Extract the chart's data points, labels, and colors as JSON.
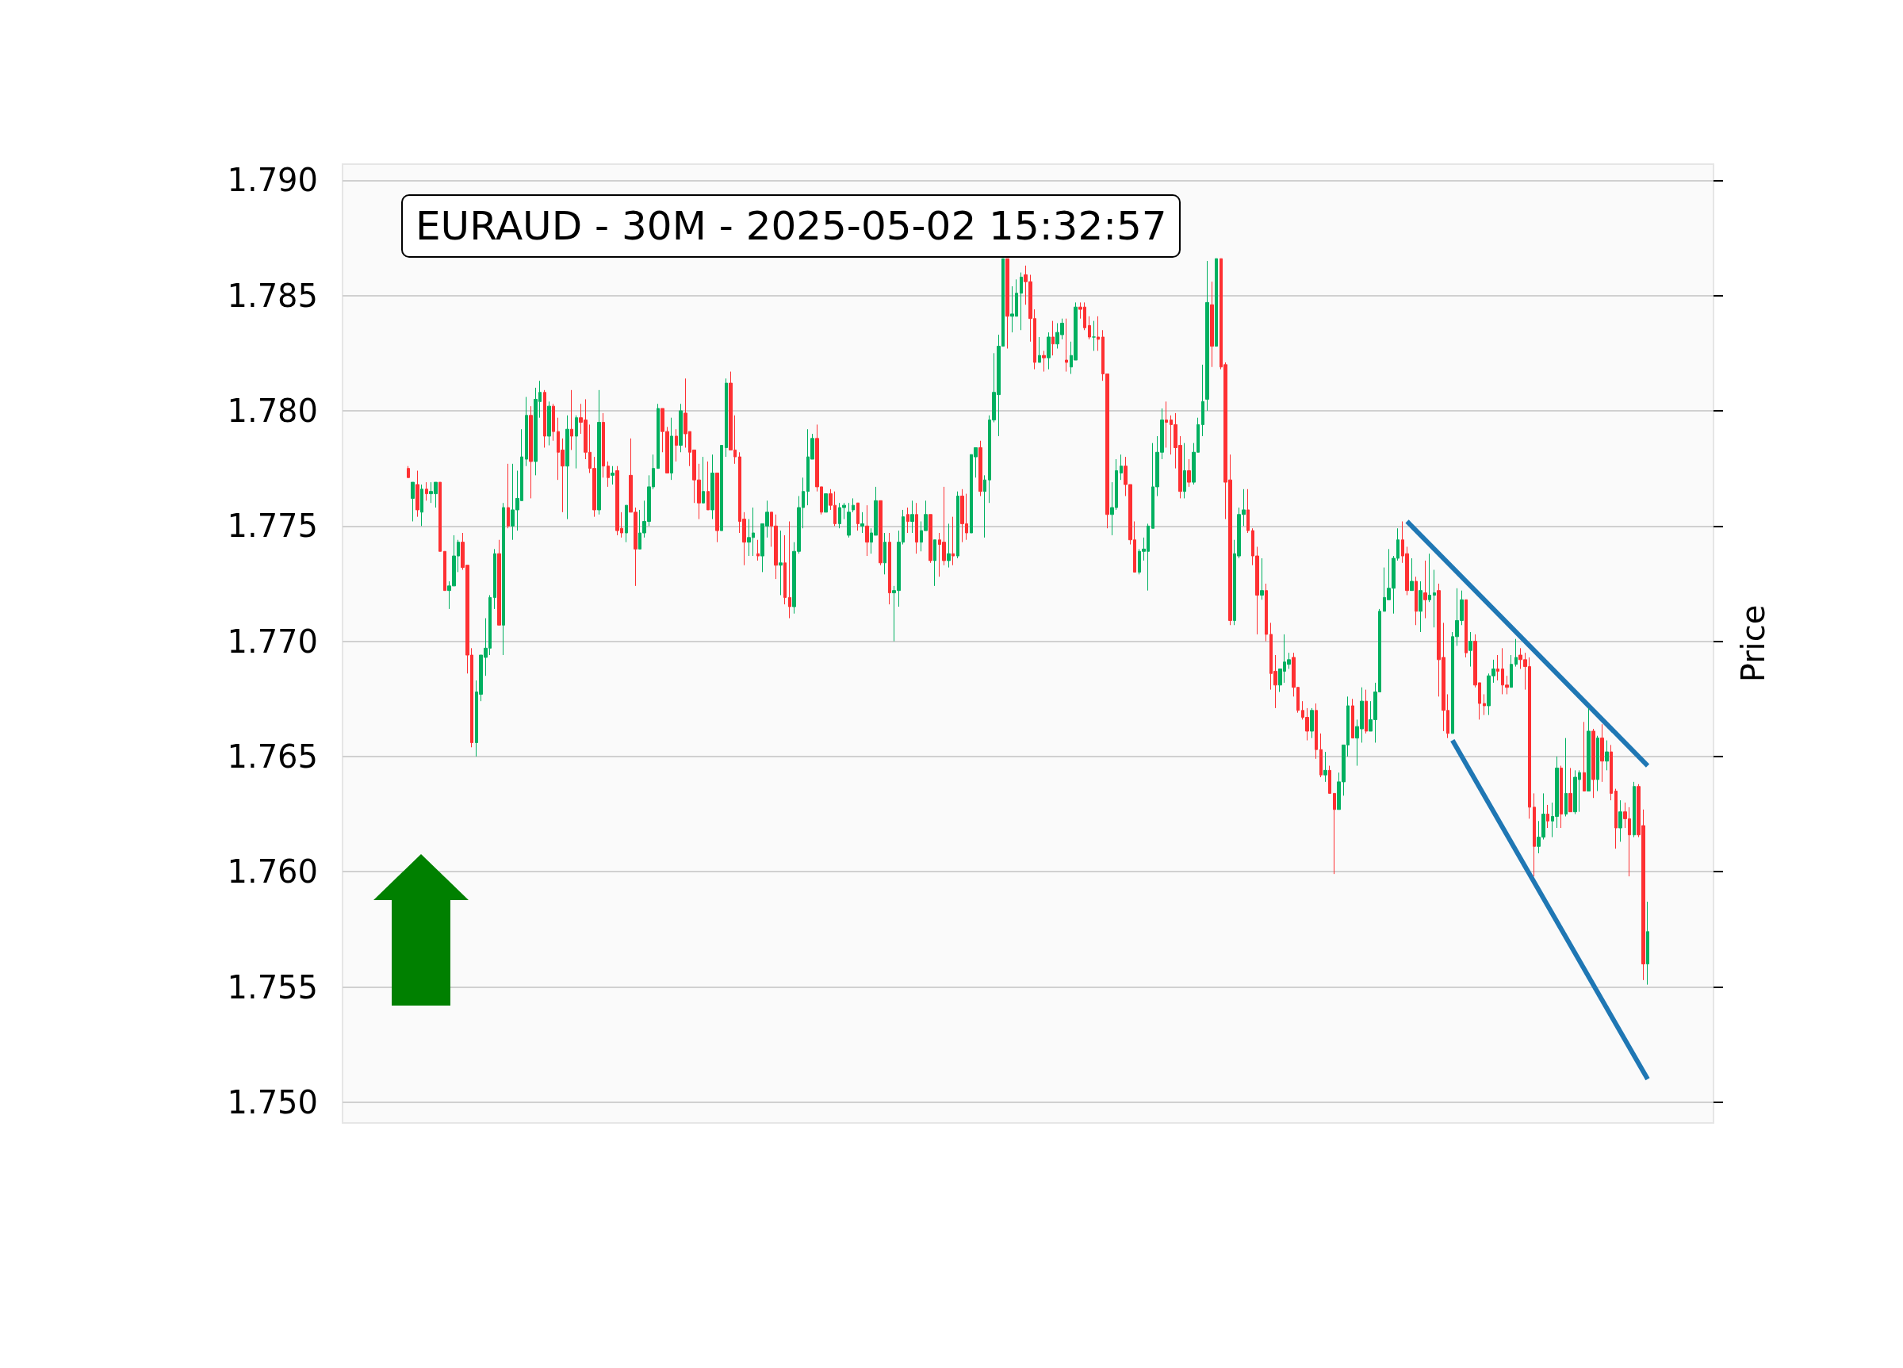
{
  "chart_data": {
    "type": "candlestick",
    "title": "EURAUD - 30M - 2025-05-02 15:32:57",
    "ylabel": "Price",
    "categories": [
      null,
      null,
      null,
      null,
      null,
      null,
      null,
      null,
      null,
      null,
      null,
      null,
      null,
      null,
      null,
      null,
      null,
      null,
      null,
      null,
      null,
      null,
      null,
      null,
      null,
      null,
      null,
      null,
      null,
      null,
      null,
      null,
      null,
      null,
      null,
      null,
      null,
      null,
      null,
      null,
      null,
      null,
      null,
      null,
      null,
      null,
      null,
      null,
      null,
      null,
      null,
      null,
      null,
      null,
      null,
      null,
      null,
      null,
      null,
      null,
      null,
      null,
      null,
      null,
      null,
      null,
      null,
      null,
      null,
      null,
      null,
      null,
      null,
      null,
      null,
      null,
      null,
      null,
      null,
      null,
      null,
      null,
      null,
      null,
      null,
      null,
      null,
      null,
      null,
      null,
      null,
      null,
      null,
      null,
      null,
      null,
      null,
      null,
      null,
      null,
      null,
      null,
      null,
      null,
      null,
      null,
      null,
      null,
      null,
      null,
      null,
      null,
      null,
      null,
      null,
      null,
      null,
      null,
      null,
      null,
      null,
      null,
      null,
      null,
      null,
      null,
      null,
      null,
      null,
      null,
      null,
      null,
      null,
      null,
      null,
      null,
      null,
      null,
      null,
      null,
      null,
      null,
      null,
      null,
      null,
      null,
      null,
      null,
      null,
      null,
      null,
      null,
      null,
      null,
      null,
      null,
      null,
      null,
      null,
      null,
      null,
      null,
      null,
      null,
      null,
      null,
      null,
      null,
      null,
      null,
      null,
      null,
      null,
      null,
      null,
      null,
      null,
      null,
      null,
      null,
      null,
      null,
      null,
      null,
      null,
      null,
      null,
      null,
      null,
      null,
      null,
      null,
      null,
      null,
      null,
      null,
      null,
      null,
      null,
      null,
      null,
      null,
      null,
      null,
      null,
      null,
      null,
      null,
      null,
      null,
      null,
      null,
      null,
      null,
      null,
      null,
      null,
      null,
      null,
      null,
      null,
      null,
      null,
      null,
      null,
      null,
      null,
      null,
      null,
      null,
      null,
      null,
      null,
      null,
      null,
      null,
      null,
      null,
      null,
      null,
      null,
      null,
      null,
      null,
      null,
      null,
      null,
      null,
      null,
      null,
      null,
      null,
      null,
      null,
      null,
      null,
      null,
      null,
      null,
      null,
      null,
      null,
      null,
      null,
      null,
      null,
      null,
      null,
      null,
      null,
      null,
      null,
      null,
      null,
      null,
      null,
      null,
      null,
      null,
      null,
      null,
      null,
      null,
      null,
      null,
      null,
      null,
      null,
      null,
      null,
      null,
      null,
      null,
      null,
      null,
      null,
      null,
      null,
      null,
      null,
      null,
      null
    ],
    "ohlc": [
      null,
      null,
      null,
      null,
      null,
      null,
      null,
      null,
      null,
      null,
      null,
      null,
      null,
      null,
      [
        1.7775,
        1.7776,
        1.7771,
        1.7771
      ],
      [
        1.7762,
        1.7769,
        1.7752,
        1.7769
      ],
      [
        1.7768,
        1.7774,
        1.7754,
        1.7757
      ],
      [
        1.7756,
        1.7768,
        1.775,
        1.7766
      ],
      [
        1.7766,
        1.7769,
        1.7761,
        1.7764
      ],
      [
        1.7764,
        1.7769,
        1.776,
        1.7765
      ],
      [
        1.7764,
        1.7769,
        1.7758,
        1.7769
      ],
      [
        1.7769,
        1.7769,
        1.7739,
        1.7739
      ],
      [
        1.7739,
        1.7739,
        1.7722,
        1.7722
      ],
      [
        1.7722,
        1.7726,
        1.7714,
        1.7724
      ],
      [
        1.7724,
        1.7746,
        1.7724,
        1.7737
      ],
      [
        1.7737,
        1.7744,
        1.773,
        1.7743
      ],
      [
        1.7743,
        1.7747,
        1.7731,
        1.7732
      ],
      [
        1.7733,
        1.7733,
        1.7686,
        1.7694
      ],
      [
        1.7694,
        1.7697,
        1.7654,
        1.7656
      ],
      [
        1.7656,
        1.7683,
        1.765,
        1.7678
      ],
      [
        1.7677,
        1.7694,
        1.7674,
        1.7694
      ],
      [
        1.7693,
        1.771,
        1.7685,
        1.7697
      ],
      [
        1.7697,
        1.772,
        1.7694,
        1.7719
      ],
      [
        1.7719,
        1.774,
        1.7714,
        1.7738
      ],
      [
        1.7738,
        1.7744,
        1.7707,
        1.7707
      ],
      [
        1.7707,
        1.776,
        1.7694,
        1.7758
      ],
      [
        1.7758,
        1.7777,
        1.7749,
        1.775
      ],
      [
        1.775,
        1.7777,
        1.7744,
        1.7757
      ],
      [
        1.7757,
        1.7774,
        1.7748,
        1.7762
      ],
      [
        1.7761,
        1.7792,
        1.7761,
        1.778
      ],
      [
        1.7779,
        1.7806,
        1.7776,
        1.7798
      ],
      [
        1.7798,
        1.7802,
        1.7762,
        1.7778
      ],
      [
        1.7778,
        1.781,
        1.7772,
        1.7805
      ],
      [
        1.7804,
        1.7813,
        1.7797,
        1.7808
      ],
      [
        1.7808,
        1.7809,
        1.7784,
        1.7789
      ],
      [
        1.7789,
        1.7804,
        1.7785,
        1.7802
      ],
      [
        1.7802,
        1.7803,
        1.7787,
        1.7791
      ],
      [
        1.7791,
        1.7797,
        1.777,
        1.7782
      ],
      [
        1.7783,
        1.7788,
        1.7756,
        1.7776
      ],
      [
        1.7776,
        1.7798,
        1.7753,
        1.7792
      ],
      [
        1.7792,
        1.7809,
        1.7783,
        1.7789
      ],
      [
        1.7789,
        1.7798,
        1.7775,
        1.7797
      ],
      [
        1.7797,
        1.7803,
        1.779,
        1.7795
      ],
      [
        1.7796,
        1.7805,
        1.7779,
        1.7782
      ],
      [
        1.7782,
        1.7794,
        1.7773,
        1.7775
      ],
      [
        1.7775,
        1.778,
        1.7754,
        1.7757
      ],
      [
        1.7757,
        1.7809,
        1.7755,
        1.7795
      ],
      [
        1.7795,
        1.7799,
        1.7771,
        1.7776
      ],
      [
        1.7776,
        1.7778,
        1.7767,
        1.7771
      ],
      [
        1.7772,
        1.7776,
        1.7768,
        1.7773
      ],
      [
        1.7774,
        1.7776,
        1.7746,
        1.7748
      ],
      [
        1.7749,
        1.7756,
        1.7745,
        1.7747
      ],
      [
        1.7747,
        1.7759,
        1.7743,
        1.7759
      ],
      [
        1.7772,
        1.7788,
        1.7756,
        1.7756
      ],
      [
        1.7756,
        1.7758,
        1.7724,
        1.774
      ],
      [
        1.774,
        1.7757,
        1.774,
        1.7747
      ],
      [
        1.7747,
        1.7761,
        1.7745,
        1.7752
      ],
      [
        1.7752,
        1.7772,
        1.775,
        1.7767
      ],
      [
        1.7767,
        1.7781,
        1.7766,
        1.7775
      ],
      [
        1.7775,
        1.7803,
        1.7775,
        1.7801
      ],
      [
        1.7801,
        1.7801,
        1.7782,
        1.7791
      ],
      [
        1.7791,
        1.7793,
        1.7773,
        1.7773
      ],
      [
        1.7773,
        1.7797,
        1.777,
        1.7789
      ],
      [
        1.7789,
        1.7792,
        1.7778,
        1.7785
      ],
      [
        1.7785,
        1.7803,
        1.7782,
        1.78
      ],
      [
        1.7799,
        1.7814,
        1.7784,
        1.779
      ],
      [
        1.7791,
        1.7791,
        1.7776,
        1.7782
      ],
      [
        1.7783,
        1.7783,
        1.776,
        1.777
      ],
      [
        1.777,
        1.7777,
        1.7753,
        1.776
      ],
      [
        1.776,
        1.778,
        1.776,
        1.7765
      ],
      [
        1.7765,
        1.7778,
        1.7757,
        1.7757
      ],
      [
        1.7757,
        1.7781,
        1.7753,
        1.7773
      ],
      [
        1.7773,
        1.7773,
        1.7743,
        1.7748
      ],
      [
        1.7748,
        1.7785,
        1.7748,
        1.7785
      ],
      [
        1.7784,
        1.7814,
        1.778,
        1.7812
      ],
      [
        1.7812,
        1.7817,
        1.7783,
        1.7783
      ],
      [
        1.7783,
        1.7798,
        1.7777,
        1.778
      ],
      [
        1.778,
        1.7782,
        1.7747,
        1.7752
      ],
      [
        1.7753,
        1.7756,
        1.7733,
        1.7743
      ],
      [
        1.7743,
        1.7753,
        1.7737,
        1.7745
      ],
      [
        1.7745,
        1.7758,
        1.7737,
        1.7747
      ],
      [
        1.7738,
        1.7744,
        1.7735,
        1.7737
      ],
      [
        1.7737,
        1.7751,
        1.773,
        1.7751
      ],
      [
        1.775,
        1.7761,
        1.7745,
        1.7756
      ],
      [
        1.7756,
        1.7756,
        1.7741,
        1.775
      ],
      [
        1.775,
        1.7755,
        1.7727,
        1.7733
      ],
      [
        1.7733,
        1.7748,
        1.772,
        1.7734
      ],
      [
        1.7734,
        1.7746,
        1.7716,
        1.7719
      ],
      [
        1.7719,
        1.7752,
        1.771,
        1.7715
      ],
      [
        1.7715,
        1.7743,
        1.7712,
        1.7739
      ],
      [
        1.7739,
        1.7763,
        1.7738,
        1.7758
      ],
      [
        1.7758,
        1.7771,
        1.7749,
        1.7765
      ],
      [
        1.7765,
        1.7792,
        1.7759,
        1.778
      ],
      [
        1.7779,
        1.779,
        1.7779,
        1.7788
      ],
      [
        1.7788,
        1.7794,
        1.7765,
        1.7767
      ],
      [
        1.7767,
        1.7767,
        1.7755,
        1.7756
      ],
      [
        1.7756,
        1.7764,
        1.7756,
        1.7764
      ],
      [
        1.7764,
        1.7766,
        1.7757,
        1.7759
      ],
      [
        1.7759,
        1.7765,
        1.775,
        1.7751
      ],
      [
        1.7751,
        1.776,
        1.7749,
        1.7758
      ],
      [
        1.7758,
        1.776,
        1.7753,
        1.7759
      ],
      [
        1.7746,
        1.776,
        1.7745,
        1.7756
      ],
      [
        1.7757,
        1.7762,
        1.7756,
        1.7759
      ],
      [
        1.776,
        1.776,
        1.7748,
        1.7751
      ],
      [
        1.775,
        1.7756,
        1.7747,
        1.7751
      ],
      [
        1.775,
        1.7759,
        1.7737,
        1.7743
      ],
      [
        1.7743,
        1.7749,
        1.7738,
        1.7747
      ],
      [
        1.7746,
        1.7767,
        1.7746,
        1.7761
      ],
      [
        1.7761,
        1.7761,
        1.7733,
        1.7734
      ],
      [
        1.7734,
        1.7747,
        1.7729,
        1.7743
      ],
      [
        1.7743,
        1.7747,
        1.7716,
        1.7721
      ],
      [
        1.7721,
        1.7724,
        1.77,
        1.7722
      ],
      [
        1.7722,
        1.7748,
        1.7715,
        1.7743
      ],
      [
        1.7743,
        1.7757,
        1.7742,
        1.7754
      ],
      [
        1.7755,
        1.7758,
        1.7747,
        1.7752
      ],
      [
        1.7752,
        1.7761,
        1.7747,
        1.7755
      ],
      [
        1.7755,
        1.776,
        1.7738,
        1.7743
      ],
      [
        1.7743,
        1.7752,
        1.7739,
        1.7748
      ],
      [
        1.7748,
        1.7761,
        1.7748,
        1.7755
      ],
      [
        1.7755,
        1.7755,
        1.7734,
        1.7735
      ],
      [
        1.7735,
        1.7744,
        1.7724,
        1.7744
      ],
      [
        1.7744,
        1.7747,
        1.7728,
        1.7742
      ],
      [
        1.7743,
        1.7767,
        1.7733,
        1.7735
      ],
      [
        1.7735,
        1.7751,
        1.7732,
        1.7738
      ],
      [
        1.7738,
        1.7754,
        1.7733,
        1.7737
      ],
      [
        1.7737,
        1.7765,
        1.7736,
        1.7763
      ],
      [
        1.7763,
        1.7766,
        1.7743,
        1.7751
      ],
      [
        1.7751,
        1.7764,
        1.7744,
        1.7747
      ],
      [
        1.7747,
        1.7781,
        1.7747,
        1.7781
      ],
      [
        1.778,
        1.7784,
        1.7771,
        1.7784
      ],
      [
        1.7784,
        1.7787,
        1.7763,
        1.7765
      ],
      [
        1.7765,
        1.7772,
        1.7745,
        1.777
      ],
      [
        1.777,
        1.7798,
        1.776,
        1.7796
      ],
      [
        1.7796,
        1.7825,
        1.7795,
        1.7808
      ],
      [
        1.7807,
        1.7833,
        1.7789,
        1.7828
      ],
      [
        1.7828,
        1.7866,
        1.7828,
        1.7866
      ],
      [
        1.7866,
        1.7866,
        1.7827,
        1.7841
      ],
      [
        1.7841,
        1.7854,
        1.7834,
        1.7842
      ],
      [
        1.7841,
        1.7857,
        1.7841,
        1.7851
      ],
      [
        1.7851,
        1.786,
        1.7835,
        1.7858
      ],
      [
        1.7859,
        1.7863,
        1.7846,
        1.7856
      ],
      [
        1.7856,
        1.7859,
        1.783,
        1.784
      ],
      [
        1.784,
        1.7844,
        1.7818,
        1.7821
      ],
      [
        1.7821,
        1.7832,
        1.7821,
        1.7824
      ],
      [
        1.7824,
        1.7826,
        1.7817,
        1.7823
      ],
      [
        1.7823,
        1.7834,
        1.7818,
        1.7832
      ],
      [
        1.7832,
        1.7839,
        1.7824,
        1.7829
      ],
      [
        1.7829,
        1.7838,
        1.7827,
        1.7834
      ],
      [
        1.7833,
        1.784,
        1.7831,
        1.7838
      ],
      [
        1.7822,
        1.784,
        1.7817,
        1.7821
      ],
      [
        1.7819,
        1.783,
        1.7816,
        1.7824
      ],
      [
        1.7822,
        1.7847,
        1.7822,
        1.7845
      ],
      [
        1.7845,
        1.7847,
        1.784,
        1.7844
      ],
      [
        1.7845,
        1.7847,
        1.7835,
        1.7836
      ],
      [
        1.7837,
        1.7841,
        1.7831,
        1.7832
      ],
      [
        1.7832,
        1.7839,
        1.7826,
        1.7832
      ],
      [
        1.7832,
        1.7841,
        1.7826,
        1.7831
      ],
      [
        1.7832,
        1.7835,
        1.7813,
        1.7816
      ],
      [
        1.7816,
        1.7816,
        1.7749,
        1.7755
      ],
      [
        1.7755,
        1.7769,
        1.7746,
        1.7758
      ],
      [
        1.7758,
        1.7779,
        1.7757,
        1.7774
      ],
      [
        1.7773,
        1.7781,
        1.777,
        1.7776
      ],
      [
        1.7776,
        1.778,
        1.7763,
        1.7768
      ],
      [
        1.7768,
        1.7768,
        1.7742,
        1.7744
      ],
      [
        1.7744,
        1.7752,
        1.773,
        1.773
      ],
      [
        1.773,
        1.774,
        1.7729,
        1.7739
      ],
      [
        1.7739,
        1.7745,
        1.7735,
        1.774
      ],
      [
        1.7739,
        1.7751,
        1.7722,
        1.775
      ],
      [
        1.7749,
        1.7786,
        1.7749,
        1.7767
      ],
      [
        1.7767,
        1.7789,
        1.7763,
        1.7782
      ],
      [
        1.7782,
        1.7801,
        1.7779,
        1.7796
      ],
      [
        1.7796,
        1.7804,
        1.7784,
        1.7795
      ],
      [
        1.7796,
        1.7798,
        1.7781,
        1.7794
      ],
      [
        1.7794,
        1.7799,
        1.7775,
        1.7784
      ],
      [
        1.7785,
        1.7789,
        1.7762,
        1.7765
      ],
      [
        1.7765,
        1.7786,
        1.7762,
        1.7774
      ],
      [
        1.7774,
        1.7779,
        1.7767,
        1.7769
      ],
      [
        1.7769,
        1.7786,
        1.7768,
        1.7782
      ],
      [
        1.7782,
        1.7797,
        1.7782,
        1.7794
      ],
      [
        1.7794,
        1.782,
        1.7789,
        1.7804
      ],
      [
        1.7805,
        1.7865,
        1.78,
        1.7847
      ],
      [
        1.7846,
        1.7856,
        1.7819,
        1.7828
      ],
      [
        1.7828,
        1.7866,
        1.7828,
        1.7866
      ],
      [
        1.7866,
        1.7866,
        1.7818,
        1.7819
      ],
      [
        1.782,
        1.7821,
        1.7753,
        1.7769
      ],
      [
        1.777,
        1.7781,
        1.7707,
        1.7709
      ],
      [
        1.7709,
        1.7744,
        1.7707,
        1.7738
      ],
      [
        1.7737,
        1.7758,
        1.7736,
        1.7755
      ],
      [
        1.7755,
        1.7766,
        1.775,
        1.7757
      ],
      [
        1.7757,
        1.7766,
        1.7747,
        1.7748
      ],
      [
        1.7748,
        1.7749,
        1.7733,
        1.7737
      ],
      [
        1.7737,
        1.7741,
        1.7703,
        1.772
      ],
      [
        1.772,
        1.7736,
        1.7718,
        1.7722
      ],
      [
        1.7722,
        1.7725,
        1.77,
        1.7703
      ],
      [
        1.7703,
        1.7708,
        1.7679,
        1.7686
      ],
      [
        1.7687,
        1.7694,
        1.7671,
        1.7681
      ],
      [
        1.7681,
        1.7688,
        1.7678,
        1.7688
      ],
      [
        1.7687,
        1.7703,
        1.7682,
        1.7691
      ],
      [
        1.769,
        1.7695,
        1.7688,
        1.7692
      ],
      [
        1.7693,
        1.7695,
        1.7676,
        1.768
      ],
      [
        1.768,
        1.768,
        1.7669,
        1.767
      ],
      [
        1.767,
        1.7674,
        1.7666,
        1.7667
      ],
      [
        1.7667,
        1.7671,
        1.7657,
        1.7661
      ],
      [
        1.7661,
        1.7671,
        1.7658,
        1.767
      ],
      [
        1.767,
        1.7673,
        1.7649,
        1.7653
      ],
      [
        1.7653,
        1.766,
        1.7641,
        1.7642
      ],
      [
        1.7642,
        1.7652,
        1.7639,
        1.7644
      ],
      [
        1.7644,
        1.7646,
        1.7634,
        1.7634
      ],
      [
        1.7634,
        1.7634,
        1.7599,
        1.7627
      ],
      [
        1.7627,
        1.7643,
        1.7627,
        1.7639
      ],
      [
        1.7639,
        1.7655,
        1.7633,
        1.7655
      ],
      [
        1.7655,
        1.7676,
        1.765,
        1.7672
      ],
      [
        1.7672,
        1.7675,
        1.7658,
        1.7658
      ],
      [
        1.7658,
        1.7666,
        1.7646,
        1.7663
      ],
      [
        1.7662,
        1.768,
        1.7656,
        1.7674
      ],
      [
        1.7674,
        1.7679,
        1.766,
        1.7661
      ],
      [
        1.7661,
        1.7674,
        1.7661,
        1.7666
      ],
      [
        1.7666,
        1.7682,
        1.7656,
        1.7678
      ],
      [
        1.7678,
        1.7714,
        1.7678,
        1.7713
      ],
      [
        1.7713,
        1.7732,
        1.7713,
        1.7719
      ],
      [
        1.7718,
        1.774,
        1.7718,
        1.7723
      ],
      [
        1.7723,
        1.7737,
        1.7712,
        1.7736
      ],
      [
        1.7736,
        1.7749,
        1.7735,
        1.7744
      ],
      [
        1.7744,
        1.7752,
        1.7734,
        1.7737
      ],
      [
        1.7738,
        1.7741,
        1.772,
        1.7722
      ],
      [
        1.7722,
        1.7736,
        1.7722,
        1.7726
      ],
      [
        1.7726,
        1.7728,
        1.7707,
        1.7713
      ],
      [
        1.7713,
        1.7726,
        1.7704,
        1.7722
      ],
      [
        1.7721,
        1.7735,
        1.771,
        1.7718
      ],
      [
        1.7718,
        1.7738,
        1.7717,
        1.772
      ],
      [
        1.772,
        1.7731,
        1.7706,
        1.7721
      ],
      [
        1.7722,
        1.7725,
        1.7676,
        1.7692
      ],
      [
        1.7693,
        1.7708,
        1.7661,
        1.767
      ],
      [
        1.767,
        1.7677,
        1.7658,
        1.766
      ],
      [
        1.766,
        1.7704,
        1.766,
        1.7702
      ],
      [
        1.7702,
        1.7723,
        1.7698,
        1.7709
      ],
      [
        1.7709,
        1.7722,
        1.7707,
        1.7718
      ],
      [
        1.7718,
        1.7718,
        1.7693,
        1.7695
      ],
      [
        1.7696,
        1.7704,
        1.7689,
        1.77
      ],
      [
        1.77,
        1.7703,
        1.768,
        1.7681
      ],
      [
        1.7682,
        1.7682,
        1.7666,
        1.7673
      ],
      [
        1.7673,
        1.7677,
        1.7668,
        1.7672
      ],
      [
        1.7672,
        1.7686,
        1.7668,
        1.7685
      ],
      [
        1.7685,
        1.7692,
        1.7682,
        1.7688
      ],
      [
        1.7688,
        1.7694,
        1.7683,
        1.7687
      ],
      [
        1.7688,
        1.7697,
        1.7677,
        1.7681
      ],
      [
        1.7681,
        1.7685,
        1.7677,
        1.768
      ],
      [
        1.768,
        1.7694,
        1.768,
        1.769
      ],
      [
        1.769,
        1.7701,
        1.7689,
        1.7693
      ],
      [
        1.7694,
        1.7697,
        1.7688,
        1.7692
      ],
      [
        1.7692,
        1.7695,
        1.7679,
        1.7689
      ],
      [
        1.7689,
        1.7693,
        1.7623,
        1.7628
      ],
      [
        1.7628,
        1.7634,
        1.7598,
        1.7611
      ],
      [
        1.7611,
        1.7622,
        1.7608,
        1.7615
      ],
      [
        1.7615,
        1.7634,
        1.7614,
        1.7625
      ],
      [
        1.7625,
        1.7629,
        1.7619,
        1.7622
      ],
      [
        1.7622,
        1.763,
        1.7615,
        1.7624
      ],
      [
        1.7624,
        1.765,
        1.7619,
        1.7645
      ],
      [
        1.7645,
        1.7646,
        1.7619,
        1.7625
      ],
      [
        1.7625,
        1.7658,
        1.7624,
        1.7634
      ],
      [
        1.7634,
        1.7645,
        1.7626,
        1.7626
      ],
      [
        1.7626,
        1.7644,
        1.7625,
        1.7641
      ],
      [
        1.764,
        1.7644,
        1.7626,
        1.7643
      ],
      [
        1.7643,
        1.7665,
        1.7635,
        1.7635
      ],
      [
        1.7635,
        1.7671,
        1.7635,
        1.7661
      ],
      [
        1.7661,
        1.7662,
        1.7632,
        1.764
      ],
      [
        1.764,
        1.7659,
        1.7635,
        1.7658
      ],
      [
        1.7658,
        1.7664,
        1.7639,
        1.7648
      ],
      [
        1.7648,
        1.7657,
        1.7644,
        1.7652
      ],
      [
        1.7652,
        1.7655,
        1.7631,
        1.7634
      ],
      [
        1.7635,
        1.7636,
        1.761,
        1.7619
      ],
      [
        1.7619,
        1.7631,
        1.7613,
        1.7626
      ],
      [
        1.7626,
        1.763,
        1.7619,
        1.7623
      ],
      [
        1.7623,
        1.7628,
        1.7598,
        1.7616
      ],
      [
        1.7616,
        1.7639,
        1.7615,
        1.7637
      ],
      [
        1.7637,
        1.7638,
        1.7615,
        1.7616
      ],
      [
        1.762,
        1.7627,
        1.7553,
        1.756
      ],
      [
        1.756,
        1.7587,
        1.7551,
        1.7574
      ],
      null,
      null,
      null,
      null,
      null,
      null,
      null,
      null,
      null,
      null,
      null,
      null,
      null,
      null
    ],
    "series": [
      {
        "type": "line",
        "color": "#1f77b4",
        "values": [
          null,
          null,
          null,
          null,
          null,
          null,
          null,
          null,
          null,
          null,
          null,
          null,
          null,
          null,
          null,
          null,
          null,
          null,
          null,
          null,
          null,
          null,
          null,
          null,
          null,
          null,
          null,
          null,
          null,
          null,
          null,
          null,
          null,
          null,
          null,
          null,
          null,
          null,
          null,
          null,
          null,
          null,
          null,
          null,
          null,
          null,
          null,
          null,
          null,
          null,
          null,
          null,
          null,
          null,
          null,
          null,
          null,
          null,
          null,
          null,
          null,
          null,
          null,
          null,
          null,
          null,
          null,
          null,
          null,
          null,
          null,
          null,
          null,
          null,
          null,
          null,
          null,
          null,
          null,
          null,
          null,
          null,
          null,
          null,
          null,
          null,
          null,
          null,
          null,
          null,
          null,
          null,
          null,
          null,
          null,
          null,
          null,
          null,
          null,
          null,
          null,
          null,
          null,
          null,
          null,
          null,
          null,
          null,
          null,
          null,
          null,
          null,
          null,
          null,
          null,
          null,
          null,
          null,
          null,
          null,
          null,
          null,
          null,
          null,
          null,
          null,
          null,
          null,
          null,
          null,
          null,
          null,
          null,
          null,
          null,
          null,
          null,
          null,
          null,
          null,
          null,
          null,
          null,
          null,
          null,
          null,
          null,
          null,
          null,
          null,
          null,
          null,
          null,
          null,
          null,
          null,
          null,
          null,
          null,
          null,
          null,
          null,
          null,
          null,
          null,
          null,
          null,
          null,
          null,
          null,
          null,
          null,
          null,
          null,
          null,
          null,
          null,
          null,
          null,
          null,
          null,
          null,
          null,
          null,
          null,
          null,
          null,
          null,
          null,
          null,
          null,
          null,
          null,
          null,
          null,
          null,
          null,
          null,
          null,
          null,
          null,
          null,
          null,
          null,
          null,
          null,
          null,
          null,
          null,
          null,
          null,
          null,
          null,
          null,
          null,
          null,
          null,
          null,
          null,
          null,
          null,
          null,
          null,
          null,
          null,
          null,
          null,
          null,
          null,
          null,
          null,
          null,
          null,
          null,
          1.7752,
          null,
          null,
          null,
          null,
          null,
          null,
          null,
          null,
          null,
          null,
          null,
          null,
          null,
          null,
          null,
          null,
          null,
          null,
          null,
          null,
          null,
          null,
          null,
          null,
          null,
          null,
          null,
          null,
          null,
          null,
          null,
          null,
          null,
          null,
          null,
          null,
          null,
          null,
          null,
          null,
          null,
          null,
          null,
          null,
          null,
          null,
          null,
          null,
          null,
          null,
          null,
          null,
          1.7646,
          null,
          null,
          null,
          null,
          null,
          null,
          null,
          null,
          null,
          null,
          null,
          null,
          null,
          null
        ]
      },
      {
        "type": "line",
        "color": "#1f77b4",
        "values": [
          null,
          null,
          null,
          null,
          null,
          null,
          null,
          null,
          null,
          null,
          null,
          null,
          null,
          null,
          null,
          null,
          null,
          null,
          null,
          null,
          null,
          null,
          null,
          null,
          null,
          null,
          null,
          null,
          null,
          null,
          null,
          null,
          null,
          null,
          null,
          null,
          null,
          null,
          null,
          null,
          null,
          null,
          null,
          null,
          null,
          null,
          null,
          null,
          null,
          null,
          null,
          null,
          null,
          null,
          null,
          null,
          null,
          null,
          null,
          null,
          null,
          null,
          null,
          null,
          null,
          null,
          null,
          null,
          null,
          null,
          null,
          null,
          null,
          null,
          null,
          null,
          null,
          null,
          null,
          null,
          null,
          null,
          null,
          null,
          null,
          null,
          null,
          null,
          null,
          null,
          null,
          null,
          null,
          null,
          null,
          null,
          null,
          null,
          null,
          null,
          null,
          null,
          null,
          null,
          null,
          null,
          null,
          null,
          null,
          null,
          null,
          null,
          null,
          null,
          null,
          null,
          null,
          null,
          null,
          null,
          null,
          null,
          null,
          null,
          null,
          null,
          null,
          null,
          null,
          null,
          null,
          null,
          null,
          null,
          null,
          null,
          null,
          null,
          null,
          null,
          null,
          null,
          null,
          null,
          null,
          null,
          null,
          null,
          null,
          null,
          null,
          null,
          null,
          null,
          null,
          null,
          null,
          null,
          null,
          null,
          null,
          null,
          null,
          null,
          null,
          null,
          null,
          null,
          null,
          null,
          null,
          null,
          null,
          null,
          null,
          null,
          null,
          null,
          null,
          null,
          null,
          null,
          null,
          null,
          null,
          null,
          null,
          null,
          null,
          null,
          null,
          null,
          null,
          null,
          null,
          null,
          null,
          null,
          null,
          null,
          null,
          null,
          null,
          null,
          null,
          null,
          null,
          null,
          null,
          null,
          null,
          null,
          null,
          null,
          null,
          null,
          null,
          null,
          null,
          null,
          null,
          null,
          null,
          null,
          null,
          null,
          null,
          null,
          null,
          null,
          null,
          null,
          null,
          null,
          null,
          null,
          null,
          null,
          null,
          null,
          null,
          null,
          null,
          null,
          1.7657,
          null,
          null,
          null,
          null,
          null,
          null,
          null,
          null,
          null,
          null,
          null,
          null,
          null,
          null,
          null,
          null,
          null,
          null,
          null,
          null,
          null,
          null,
          null,
          null,
          null,
          null,
          null,
          null,
          null,
          null,
          null,
          null,
          null,
          null,
          null,
          null,
          null,
          null,
          null,
          null,
          null,
          null,
          1.751,
          null,
          null,
          null,
          null,
          null,
          null,
          null,
          null,
          null,
          null,
          null,
          null,
          null,
          null
        ]
      }
    ],
    "ylim": [
      1.7491,
      1.7907
    ],
    "yticks": [
      {
        "value": 1.75,
        "label": "1.750"
      },
      {
        "value": 1.755,
        "label": "1.755"
      },
      {
        "value": 1.76,
        "label": "1.760"
      },
      {
        "value": 1.765,
        "label": "1.765"
      },
      {
        "value": 1.77,
        "label": "1.770"
      },
      {
        "value": 1.775,
        "label": "1.775"
      },
      {
        "value": 1.78,
        "label": "1.780"
      },
      {
        "value": 1.785,
        "label": "1.785"
      },
      {
        "value": 1.79,
        "label": "1.790"
      }
    ],
    "grid": "y",
    "tick_labels": "y"
  }
}
